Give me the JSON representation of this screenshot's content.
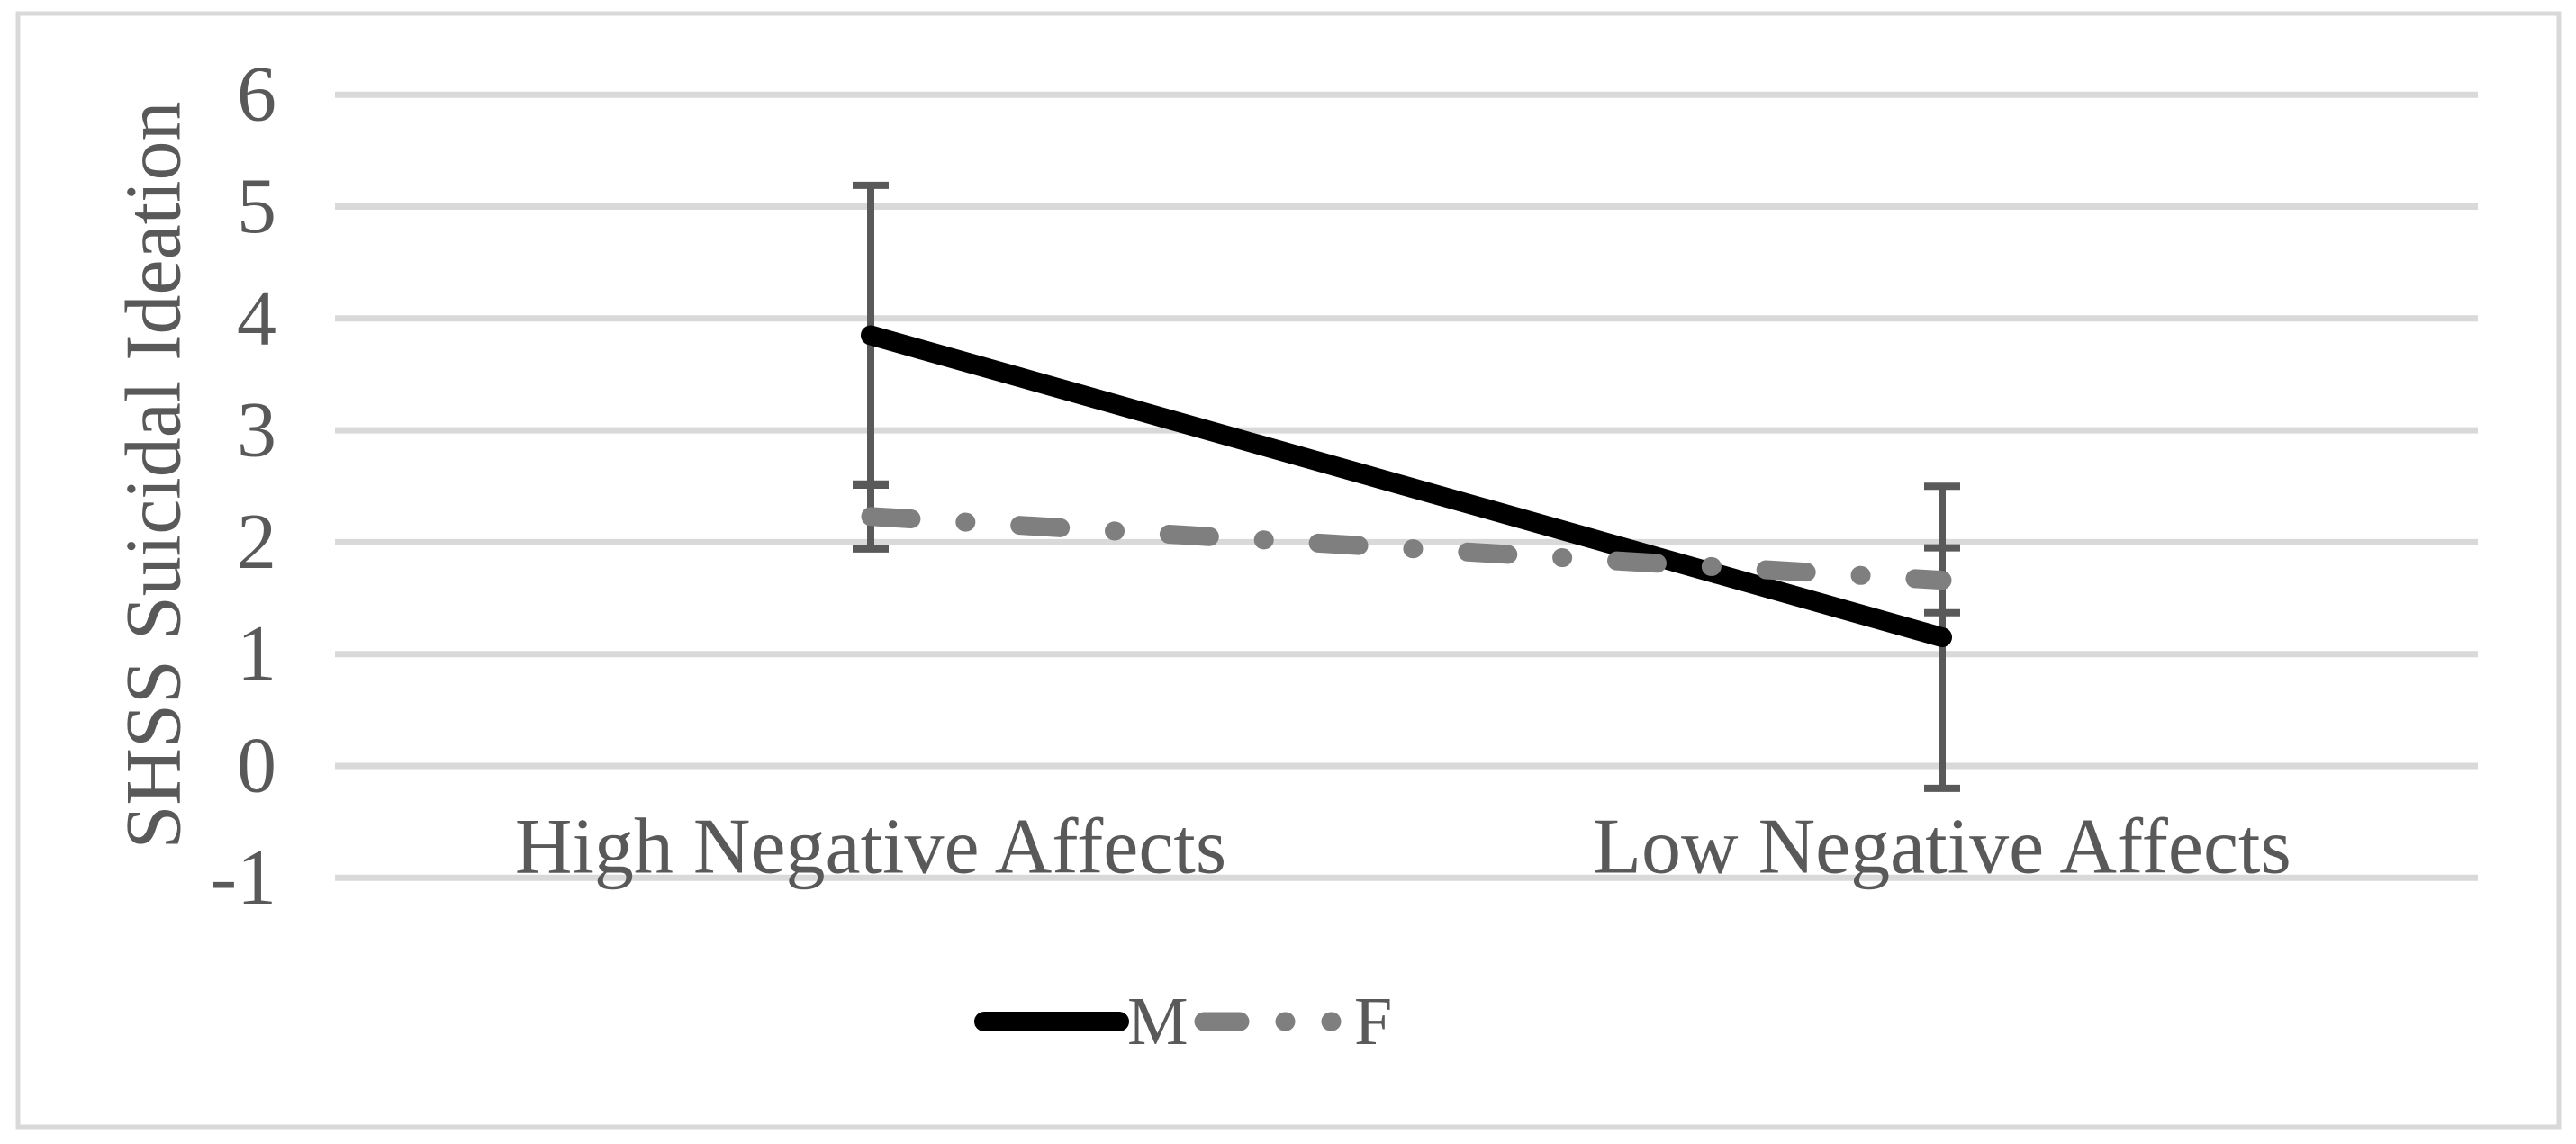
{
  "figure": {
    "background": "#ffffff",
    "border_color": "#d9d9d9"
  },
  "chart_data": {
    "type": "line",
    "title": "",
    "categories": [
      "High Negative Affects",
      "Low Negative Affects"
    ],
    "series": [
      {
        "name": "M",
        "values": [
          3.85,
          1.15
        ],
        "error_low": [
          2.51,
          -0.2
        ],
        "error_high": [
          5.19,
          2.5
        ],
        "color": "#000000",
        "line_style": "solid"
      },
      {
        "name": "F",
        "values": [
          2.23,
          1.66
        ],
        "error_low": [
          1.94,
          1.37
        ],
        "error_high": [
          2.52,
          1.95
        ],
        "color": "#7f7f7f",
        "line_style": "dash-dot"
      }
    ],
    "xlabel": "",
    "ylabel": "SHSS Suicidal Ideation",
    "yticks": [
      6,
      5,
      4,
      3,
      2,
      1,
      0,
      -1
    ],
    "ylim": [
      -1,
      6
    ],
    "grid": true,
    "legend_position": "bottom-center",
    "colors": {
      "gridline": "#d9d9d9",
      "text": "#595959",
      "error_bar": "#595959"
    }
  }
}
